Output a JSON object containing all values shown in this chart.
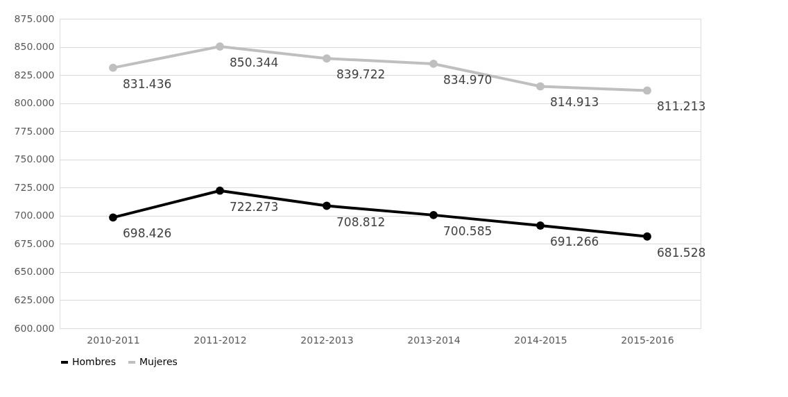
{
  "chart_data": {
    "type": "line",
    "categories": [
      "2010-2011",
      "2011-2012",
      "2012-2013",
      "2013-2014",
      "2014-2015",
      "2015-2016"
    ],
    "series": [
      {
        "name": "Hombres",
        "color": "#000000",
        "values": [
          698426,
          722273,
          708812,
          700585,
          691266,
          681528
        ],
        "value_labels": [
          "698.426",
          "722.273",
          "708.812",
          "700.585",
          "691.266",
          "681.528"
        ]
      },
      {
        "name": "Mujeres",
        "color": "#bfbfbf",
        "values": [
          831436,
          850344,
          839722,
          834970,
          814913,
          811213
        ],
        "value_labels": [
          "831.436",
          "850.344",
          "839.722",
          "834.970",
          "814.913",
          "811.213"
        ]
      }
    ],
    "ylim": [
      600000,
      875000
    ],
    "yticks": [
      {
        "value": 600000,
        "label": "600.000"
      },
      {
        "value": 625000,
        "label": "625.000"
      },
      {
        "value": 650000,
        "label": "650.000"
      },
      {
        "value": 675000,
        "label": "675.000"
      },
      {
        "value": 700000,
        "label": "700.000"
      },
      {
        "value": 725000,
        "label": "725.000"
      },
      {
        "value": 750000,
        "label": "750.000"
      },
      {
        "value": 775000,
        "label": "775.000"
      },
      {
        "value": 800000,
        "label": "800.000"
      },
      {
        "value": 825000,
        "label": "825.000"
      },
      {
        "value": 850000,
        "label": "850.000"
      },
      {
        "value": 875000,
        "label": "875.000"
      }
    ],
    "grid": "y",
    "legend": "bottom",
    "marker": "circle",
    "line_style": "solid"
  }
}
